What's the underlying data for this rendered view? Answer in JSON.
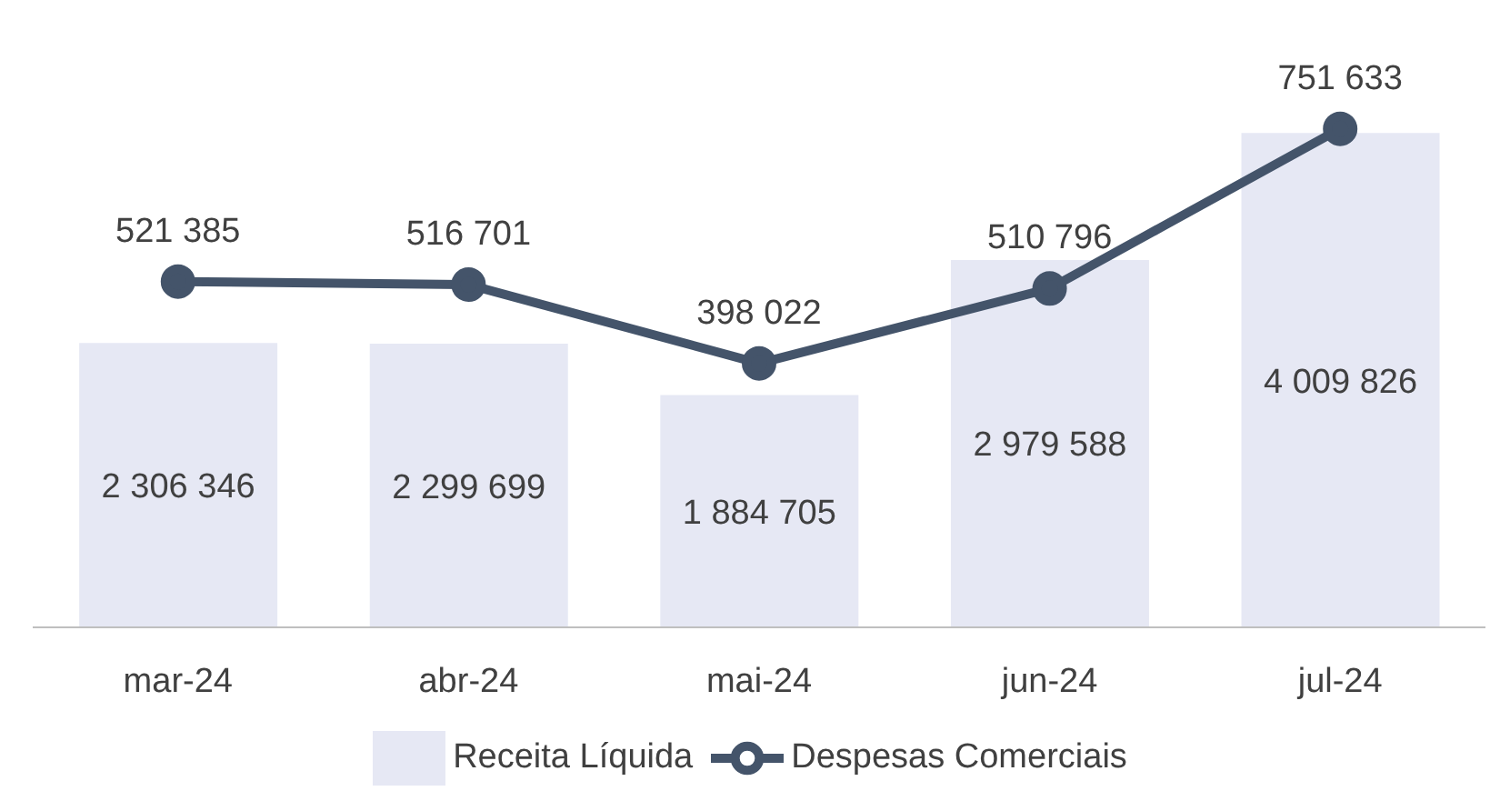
{
  "chart_data": {
    "type": "bar",
    "categories": [
      "mar-24",
      "abr-24",
      "mai-24",
      "jun-24",
      "jul-24"
    ],
    "series": [
      {
        "name": "Receita Líquida",
        "color": "#e6e8f4",
        "values": [
          2306346,
          2299699,
          1884705,
          2979588,
          4009826
        ]
      },
      {
        "name": "Despesas Comerciais",
        "type": "line",
        "axis": "y2",
        "color": "#44546a",
        "values": [
          521385,
          516701,
          398022,
          510796,
          751633
        ]
      }
    ],
    "tick_labels": "x",
    "data_labels": true,
    "legend": "bottom",
    "marker": "circle"
  }
}
